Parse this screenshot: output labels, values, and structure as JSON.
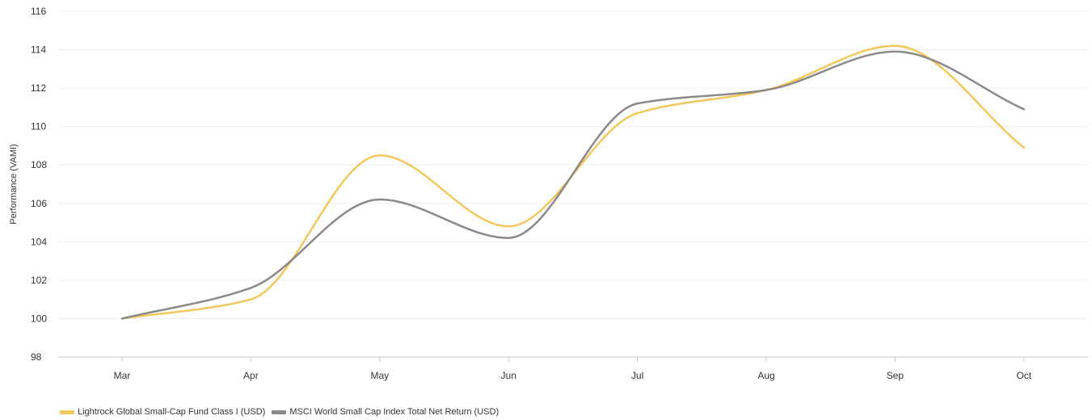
{
  "chart_data": {
    "type": "line",
    "title": "",
    "xlabel": "",
    "ylabel": "Performance (VAMI)",
    "categories": [
      "Mar",
      "Apr",
      "May",
      "Jun",
      "Jul",
      "Aug",
      "Sep",
      "Oct"
    ],
    "ylim": [
      98,
      116
    ],
    "yticks": [
      98,
      100,
      102,
      104,
      106,
      108,
      110,
      112,
      114,
      116
    ],
    "grid": true,
    "legend_position": "bottom-left",
    "series": [
      {
        "name": "Lightrock Global Small-Cap Fund Class I (USD)",
        "color": "#f2c75c",
        "values": [
          100.0,
          101.0,
          108.5,
          104.8,
          110.7,
          111.9,
          114.2,
          108.9
        ]
      },
      {
        "name": "MSCI World Small Cap Index Total Net Return (USD)",
        "color": "#8c8a87",
        "values": [
          100.0,
          101.6,
          106.2,
          104.2,
          111.2,
          111.9,
          113.9,
          110.9
        ]
      }
    ]
  }
}
